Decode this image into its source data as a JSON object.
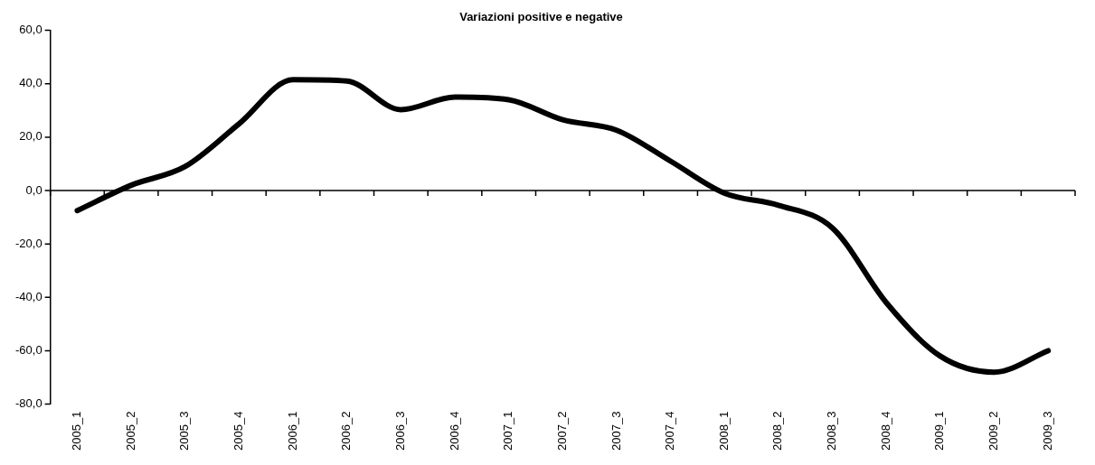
{
  "chart_data": {
    "type": "line",
    "title": "Variazioni positive e negative",
    "categories": [
      "2005_1",
      "2005_2",
      "2005_3",
      "2005_4",
      "2006_1",
      "2006_2",
      "2006_3",
      "2006_4",
      "2007_1",
      "2007_2",
      "2007_3",
      "2007_4",
      "2008_1",
      "2008_2",
      "2008_3",
      "2008_4",
      "2009_1",
      "2009_2",
      "2009_3"
    ],
    "series": [
      {
        "color": "#000000",
        "values": [
          -7.5,
          2,
          9,
          25,
          41.5,
          41,
          30.3,
          35,
          34,
          26.5,
          22.6,
          11,
          -1,
          -5.5,
          -14,
          -42,
          -62,
          -68,
          -60
        ]
      }
    ],
    "ylim": [
      -80,
      60
    ],
    "yticks": [
      {
        "value": -80,
        "label": "-80,0"
      },
      {
        "value": -60,
        "label": "-60,0"
      },
      {
        "value": -40,
        "label": "-40,0"
      },
      {
        "value": -20,
        "label": "-20,0"
      },
      {
        "value": 0,
        "label": "0,0"
      },
      {
        "value": 20,
        "label": "20,0"
      },
      {
        "value": 40,
        "label": "40,0"
      },
      {
        "value": 60,
        "label": "60,0"
      }
    ],
    "ref_lines": [
      {
        "axis": "y",
        "value": 0,
        "color": "#000000"
      }
    ],
    "grid": false,
    "legend": false,
    "marker": "none",
    "line_style": "solid"
  }
}
